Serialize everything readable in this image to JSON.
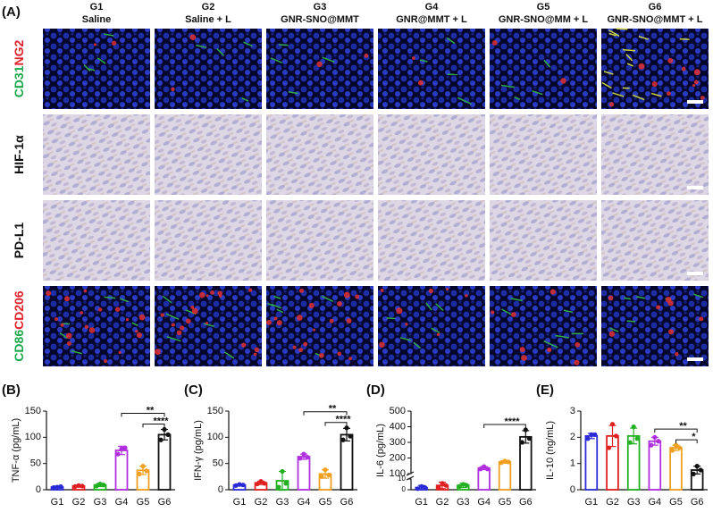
{
  "panel_a": {
    "label": "(A)",
    "columns": [
      {
        "group": "G1",
        "name": "Saline"
      },
      {
        "group": "G2",
        "name": "Saline + L"
      },
      {
        "group": "G3",
        "name": "GNR-SNO@MMT"
      },
      {
        "group": "G4",
        "name": "GNR@MMT + L"
      },
      {
        "group": "G5",
        "name": "GNR-SNO@MM + L"
      },
      {
        "group": "G6",
        "name": "GNR-SNO@MMT + L"
      }
    ],
    "rows": [
      {
        "kind": "fluorescence",
        "parts": [
          {
            "text": "CD31",
            "color": "#1aa84a"
          },
          {
            "text": "NG2",
            "color": "#e0202a"
          }
        ]
      },
      {
        "kind": "ihc",
        "parts": [
          {
            "text": "HIF-1α",
            "color": "#111111"
          }
        ]
      },
      {
        "kind": "ihc",
        "parts": [
          {
            "text": "PD-L1",
            "color": "#111111"
          }
        ]
      },
      {
        "kind": "fluorescence",
        "parts": [
          {
            "text": "CD86",
            "color": "#1aa84a"
          },
          {
            "text": "CD206",
            "color": "#e0202a"
          }
        ]
      }
    ]
  },
  "chart_data": [
    {
      "type": "bar",
      "panel_label": "(B)",
      "ylabel": "TNF-α (pg/mL)",
      "categories": [
        "G1",
        "G2",
        "G3",
        "G4",
        "G5",
        "G6"
      ],
      "values": [
        5,
        7,
        9,
        75,
        37,
        105
      ],
      "errors": [
        2,
        2,
        3,
        8,
        8,
        10
      ],
      "points": [
        [
          4,
          5,
          6
        ],
        [
          6,
          8,
          7
        ],
        [
          7,
          11,
          9
        ],
        [
          68,
          78,
          80
        ],
        [
          30,
          45,
          36
        ],
        [
          95,
          115,
          105
        ]
      ],
      "colors": [
        "#2b2bd6",
        "#e02020",
        "#22b022",
        "#b030e0",
        "#f0a020",
        "#111111"
      ],
      "ylim": [
        0,
        150
      ],
      "yticks": [
        0,
        50,
        100,
        150
      ],
      "annotations": [
        {
          "text": "****",
          "between": [
            "G5",
            "G6"
          ]
        },
        {
          "text": "**",
          "between": [
            "G4",
            "G6"
          ]
        }
      ]
    },
    {
      "type": "bar",
      "panel_label": "(C)",
      "ylabel": "IFN-γ (pg/mL)",
      "categories": [
        "G1",
        "G2",
        "G3",
        "G4",
        "G5",
        "G6"
      ],
      "values": [
        9,
        13,
        17,
        63,
        30,
        105
      ],
      "errors": [
        2,
        3,
        18,
        5,
        8,
        12
      ],
      "points": [
        [
          8,
          10,
          9
        ],
        [
          11,
          16,
          12
        ],
        [
          5,
          35,
          12
        ],
        [
          60,
          68,
          62
        ],
        [
          25,
          38,
          28
        ],
        [
          95,
          118,
          102
        ]
      ],
      "colors": [
        "#2b2bd6",
        "#e02020",
        "#22b022",
        "#b030e0",
        "#f0a020",
        "#111111"
      ],
      "ylim": [
        0,
        150
      ],
      "yticks": [
        0,
        50,
        100,
        150
      ],
      "annotations": [
        {
          "text": "****",
          "between": [
            "G5",
            "G6"
          ]
        },
        {
          "text": "**",
          "between": [
            "G4",
            "G6"
          ]
        }
      ]
    },
    {
      "type": "bar",
      "panel_label": "(D)",
      "ylabel": "IL-6 (pg/mL)",
      "categories": [
        "G1",
        "G2",
        "G3",
        "G4",
        "G5",
        "G6"
      ],
      "values": [
        2,
        4,
        4,
        135,
        175,
        335
      ],
      "errors": [
        2,
        3,
        2,
        10,
        8,
        40
      ],
      "points": [
        [
          1,
          3,
          2
        ],
        [
          2,
          6,
          4
        ],
        [
          3,
          5,
          4
        ],
        [
          130,
          145,
          130
        ],
        [
          170,
          180,
          175
        ],
        [
          300,
          380,
          325
        ]
      ],
      "colors": [
        "#2b2bd6",
        "#e02020",
        "#22b022",
        "#b030e0",
        "#f0a020",
        "#111111"
      ],
      "ylim": [
        0,
        500
      ],
      "ybreak": [
        10,
        100
      ],
      "yticks": [
        0,
        10,
        100,
        200,
        300,
        400,
        500
      ],
      "annotations": [
        {
          "text": "****",
          "between": [
            "G4",
            "G6"
          ]
        }
      ]
    },
    {
      "type": "bar",
      "panel_label": "(E)",
      "ylabel": "IL-10 (ng/mL)",
      "categories": [
        "G1",
        "G2",
        "G3",
        "G4",
        "G5",
        "G6"
      ],
      "values": [
        2.05,
        2.05,
        2.05,
        1.85,
        1.6,
        0.75
      ],
      "errors": [
        0.1,
        0.4,
        0.3,
        0.15,
        0.1,
        0.15
      ],
      "points": [
        [
          1.95,
          2.1,
          2.1
        ],
        [
          1.6,
          2.5,
          2.05
        ],
        [
          1.8,
          2.4,
          1.95
        ],
        [
          1.7,
          2.0,
          1.85
        ],
        [
          1.5,
          1.7,
          1.6
        ],
        [
          0.6,
          0.9,
          0.75
        ]
      ],
      "colors": [
        "#2b2bd6",
        "#e02020",
        "#22b022",
        "#b030e0",
        "#f0a020",
        "#111111"
      ],
      "ylim": [
        0,
        3
      ],
      "yticks": [
        0,
        1,
        2,
        3
      ],
      "annotations": [
        {
          "text": "*",
          "between": [
            "G5",
            "G6"
          ]
        },
        {
          "text": "**",
          "between": [
            "G4",
            "G6"
          ]
        }
      ]
    }
  ]
}
